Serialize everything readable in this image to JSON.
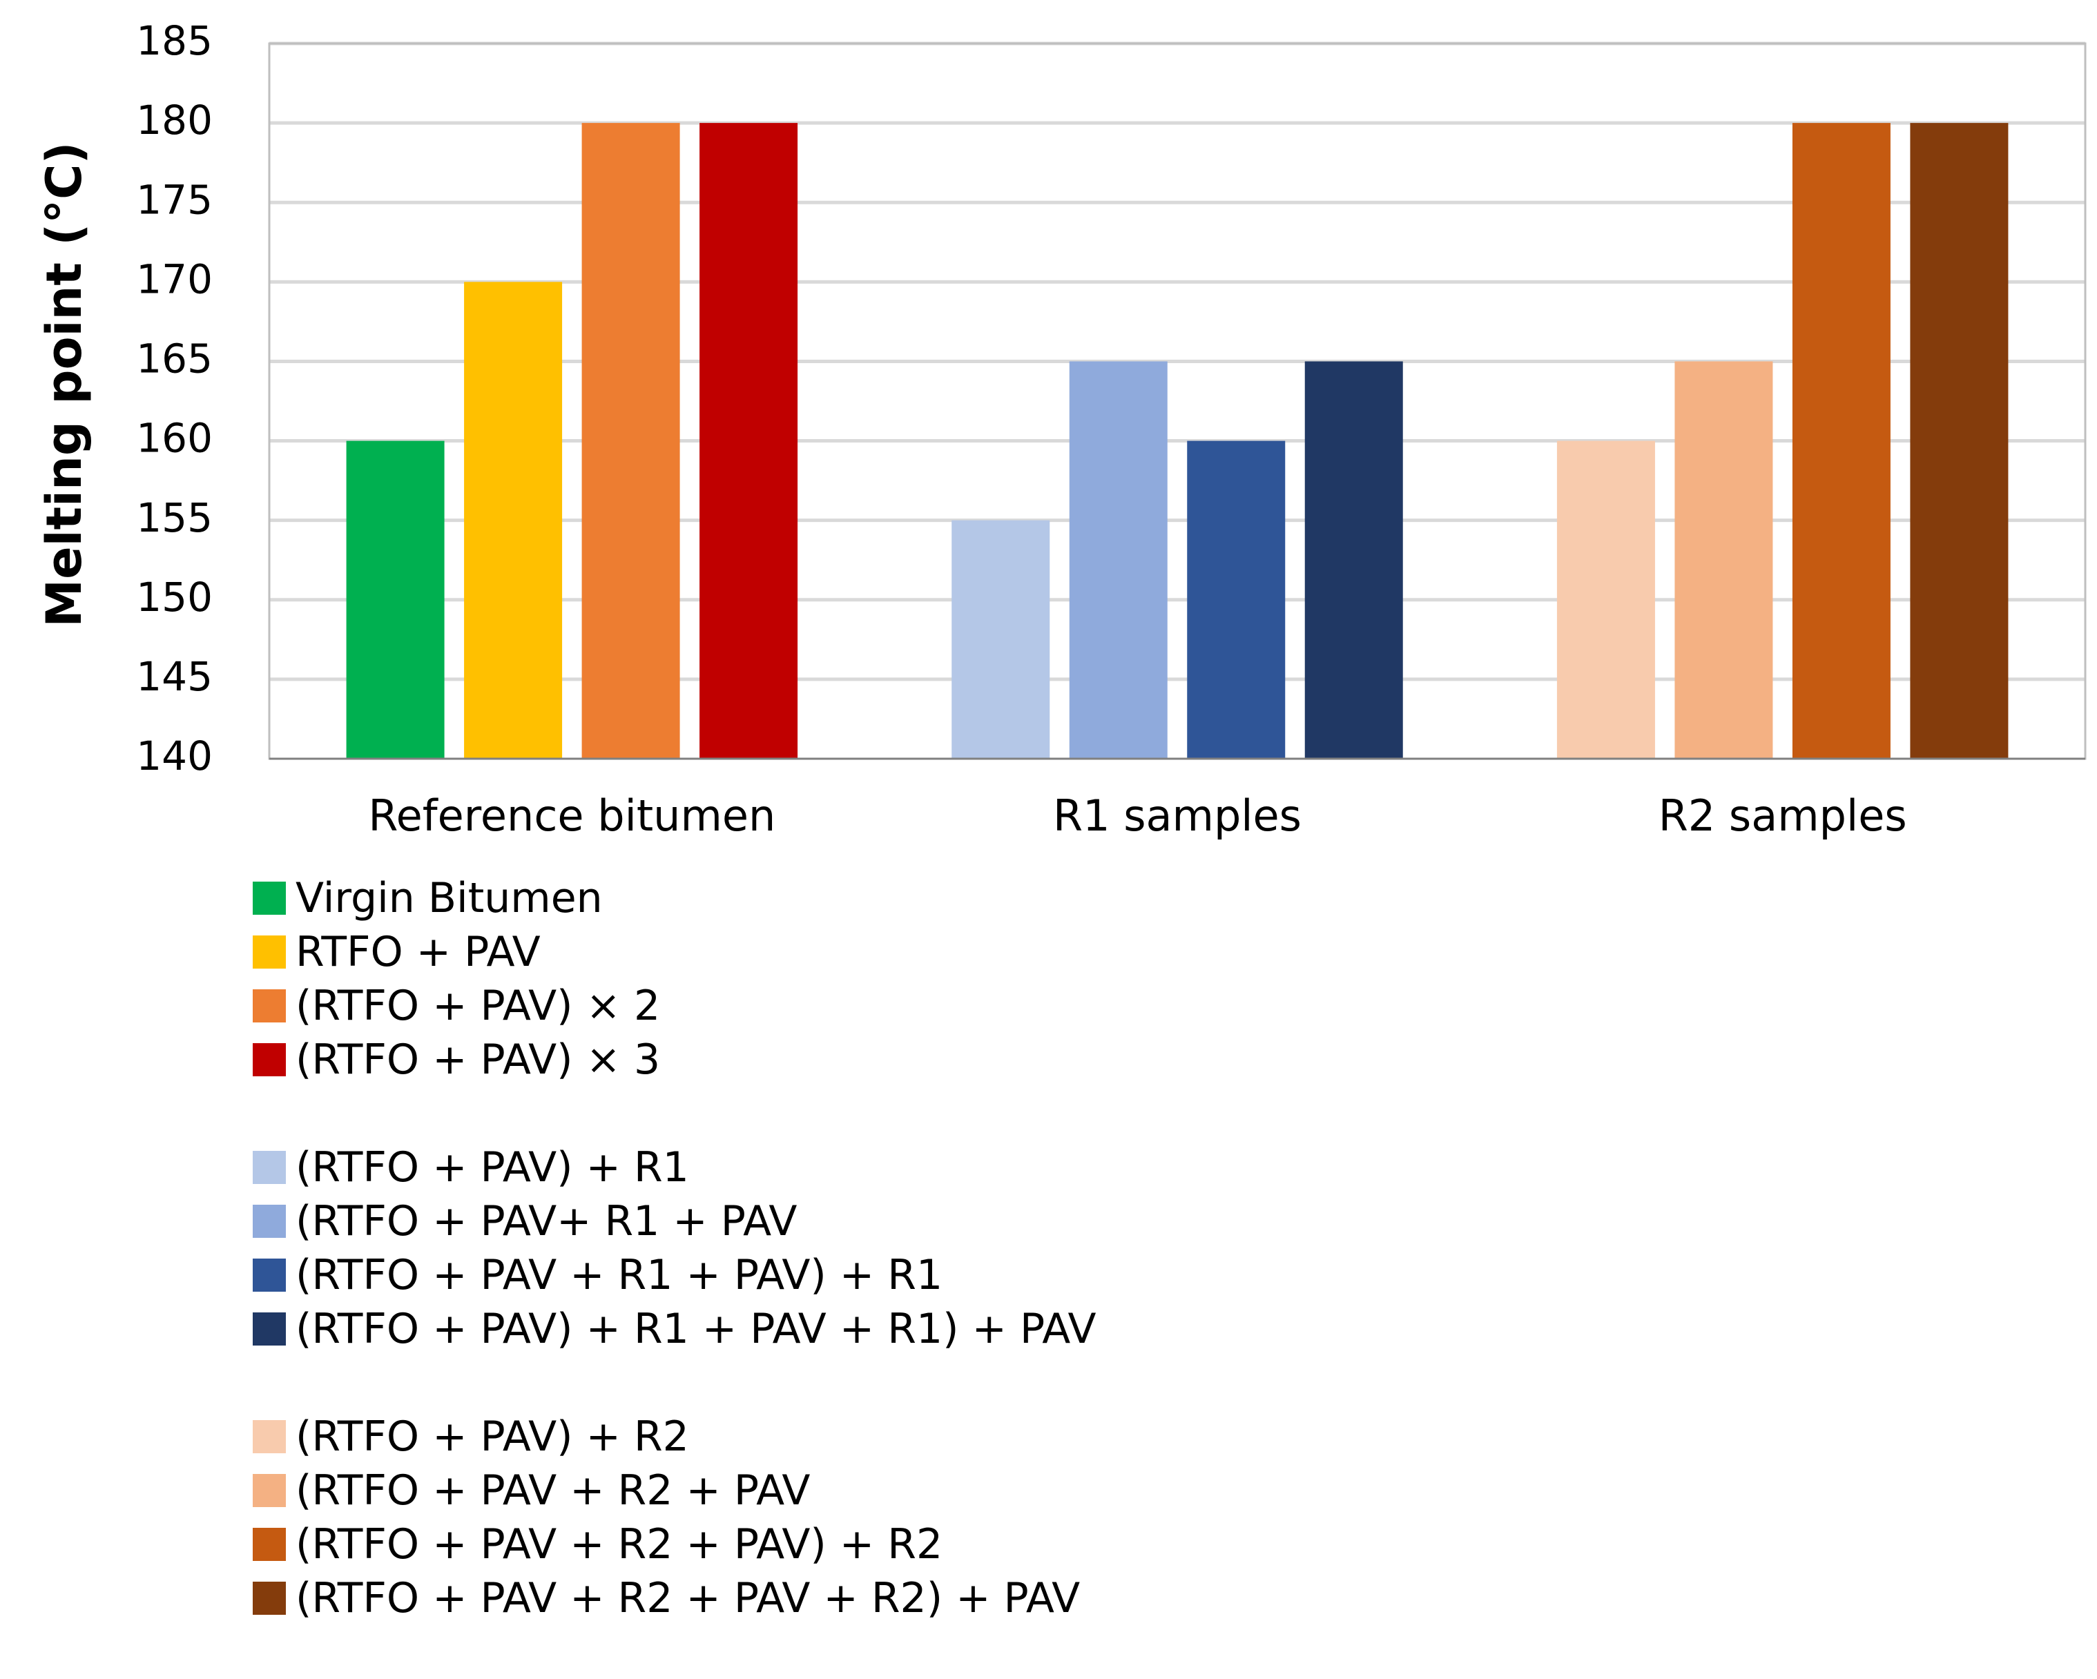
{
  "chart_data": {
    "type": "bar",
    "title": "",
    "xlabel": "",
    "ylabel": "Melting point (°C)",
    "ylim": [
      140,
      185
    ],
    "yticks": [
      140,
      145,
      150,
      155,
      160,
      165,
      170,
      175,
      180,
      185
    ],
    "grid": true,
    "legend_position": "bottom-left",
    "categories": [
      "Reference bitumen",
      "R1 samples",
      "R2 samples"
    ],
    "groups": [
      {
        "category": "Reference bitumen",
        "bars": [
          {
            "name": "Virgin Bitumen",
            "value": 160,
            "color": "#00B050"
          },
          {
            "name": "RTFO + PAV",
            "value": 170,
            "color": "#FFC000"
          },
          {
            "name": "(RTFO + PAV) × 2",
            "value": 180,
            "color": "#ED7D31"
          },
          {
            "name": "(RTFO + PAV) × 3",
            "value": 180,
            "color": "#C00000"
          }
        ]
      },
      {
        "category": "R1 samples",
        "bars": [
          {
            "name": "(RTFO + PAV) + R1",
            "value": 155,
            "color": "#B4C7E7"
          },
          {
            "name": "(RTFO + PAV+ R1 + PAV",
            "value": 165,
            "color": "#8FAADC"
          },
          {
            "name": "(RTFO + PAV + R1 + PAV) + R1",
            "value": 160,
            "color": "#2F5597"
          },
          {
            "name": "(RTFO + PAV) + R1 + PAV + R1) + PAV",
            "value": 165,
            "color": "#203864"
          }
        ]
      },
      {
        "category": "R2 samples",
        "bars": [
          {
            "name": "(RTFO + PAV) + R2",
            "value": 160,
            "color": "#F8CBAD"
          },
          {
            "name": "(RTFO + PAV + R2 + PAV",
            "value": 165,
            "color": "#F4B183"
          },
          {
            "name": "(RTFO + PAV + R2 + PAV) + R2",
            "value": 180,
            "color": "#C55A11"
          },
          {
            "name": "(RTFO + PAV + R2 + PAV + R2) + PAV",
            "value": 180,
            "color": "#843C0C"
          }
        ]
      }
    ]
  }
}
